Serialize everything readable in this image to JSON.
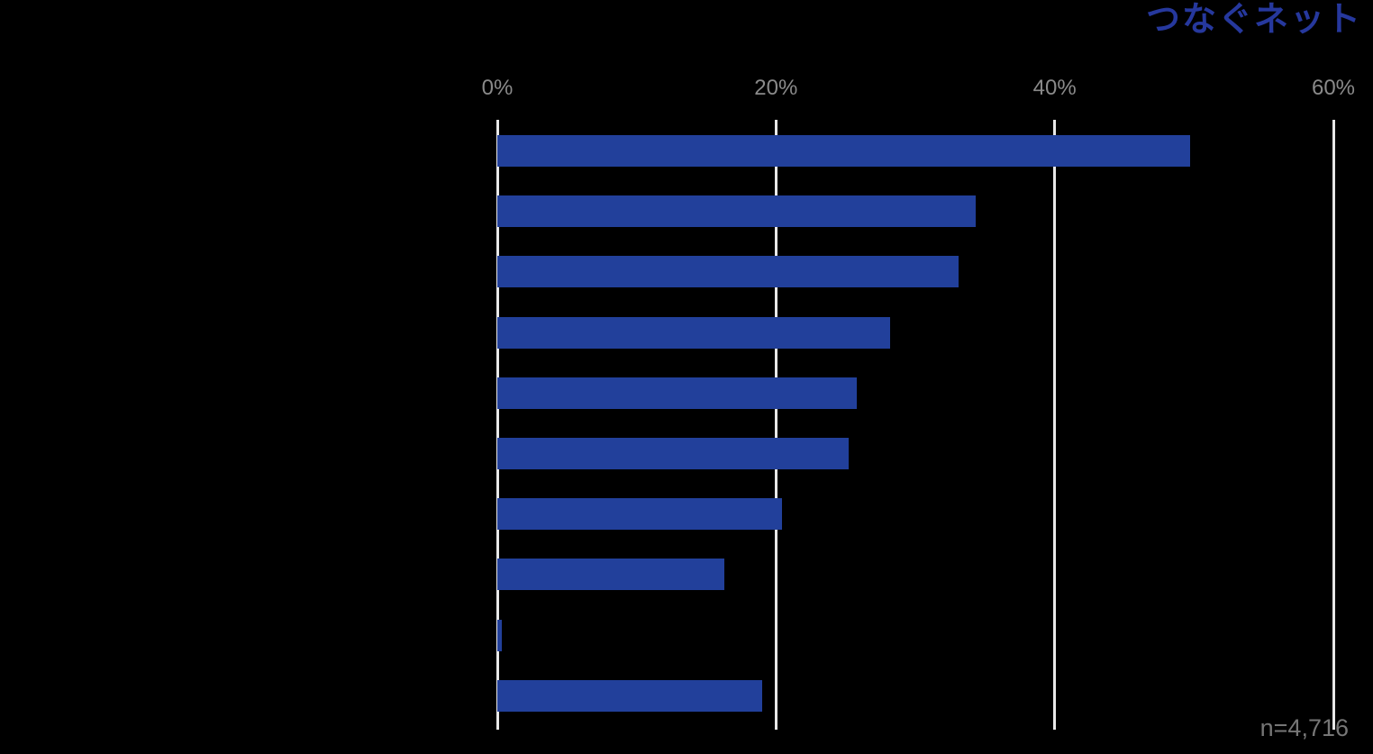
{
  "header": {
    "logo_text": "つなぐネット"
  },
  "footer": {
    "sample_size": "n=4,716"
  },
  "colors": {
    "background": "#000000",
    "bar": "#22409b",
    "gridline": "#e8e8e8",
    "axis_tick_text": "#8a8a8a",
    "sample_size_text": "#767676",
    "logo_blue": "#26389d"
  },
  "chart_data": {
    "type": "bar",
    "orientation": "horizontal",
    "title": "",
    "xlabel": "",
    "ylabel": "",
    "xlim": [
      0,
      60
    ],
    "grid": true,
    "x_ticks": [
      {
        "label": "0%",
        "value": 0
      },
      {
        "label": "20%",
        "value": 20
      },
      {
        "label": "40%",
        "value": 40
      },
      {
        "label": "60%",
        "value": 60
      }
    ],
    "categories": [
      "",
      "",
      "",
      "",
      "",
      "",
      "",
      "",
      "",
      ""
    ],
    "values": [
      49.7,
      34.3,
      33.1,
      28.2,
      25.8,
      25.2,
      20.4,
      16.3,
      0.3,
      19.0
    ]
  }
}
